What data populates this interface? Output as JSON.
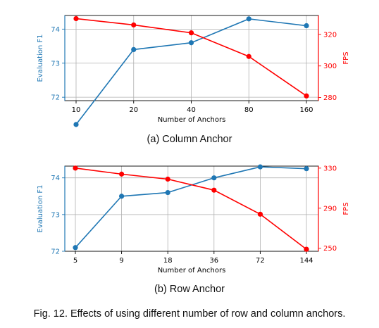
{
  "chart_data": [
    {
      "type": "line",
      "xlabel": "Number of Anchors",
      "ylabel_left": "Evaluation F1",
      "ylabel_right": "FPS",
      "categories": [
        "10",
        "20",
        "40",
        "80",
        "160"
      ],
      "left_ticks": [
        72,
        73,
        74
      ],
      "left_ylim": [
        71.9,
        74.4
      ],
      "right_ticks": [
        280,
        300,
        320
      ],
      "right_ylim": [
        278,
        332
      ],
      "grid": true,
      "series": [
        {
          "axis": "left",
          "color": "#1f77b4",
          "values": [
            71.2,
            73.4,
            73.6,
            74.3,
            74.1
          ]
        },
        {
          "axis": "right",
          "color": "#ff0000",
          "values": [
            330,
            326,
            321,
            306,
            281
          ]
        }
      ],
      "caption": "(a) Column Anchor"
    },
    {
      "type": "line",
      "xlabel": "Number of Anchors",
      "ylabel_left": "Evaluation F1",
      "ylabel_right": "FPS",
      "categories": [
        "5",
        "9",
        "18",
        "36",
        "72",
        "144"
      ],
      "left_ticks": [
        72,
        73,
        74
      ],
      "left_ylim": [
        72.0,
        74.32
      ],
      "right_ticks": [
        250,
        290,
        330
      ],
      "right_ylim": [
        247,
        332
      ],
      "grid": true,
      "series": [
        {
          "axis": "left",
          "color": "#1f77b4",
          "values": [
            72.1,
            73.5,
            73.6,
            74.0,
            74.3,
            74.25
          ]
        },
        {
          "axis": "right",
          "color": "#ff0000",
          "values": [
            330,
            324,
            319,
            308,
            284,
            249
          ]
        }
      ],
      "caption": "(b) Row Anchor"
    }
  ],
  "figure_caption": "Fig. 12. Effects of using different number of row and column anchors."
}
